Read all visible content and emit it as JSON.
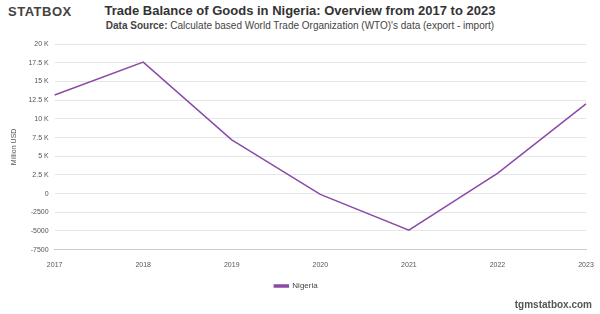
{
  "chart_data": {
    "type": "line",
    "title": "Trade Balance of Goods in Nigeria: Overview from 2017 to 2023",
    "subtitle": "Data Source: Calculate based World Trade Organization (WTO)'s data (export - import)",
    "y_label": "Million USD",
    "annotations": [
      "STATBOX",
      "tgmstatbox.com"
    ],
    "categories": [
      "2017",
      "2018",
      "2019",
      "2020",
      "2021",
      "2022",
      "2023"
    ],
    "series": [
      {
        "name": "Nigeria",
        "color": "#8b4aa8",
        "values": [
          13200,
          17600,
          7200,
          -100,
          -4900,
          2700,
          12000
        ]
      }
    ],
    "ylim": [
      -7500,
      20000
    ],
    "yticks": [
      -7500,
      -5000,
      -2500,
      0,
      {
        "value": 2500,
        "label": "2.5 K"
      },
      {
        "value": 5000,
        "label": "5 K"
      },
      {
        "value": 7500,
        "label": "7.5 K"
      },
      {
        "value": 10000,
        "label": "10 K"
      },
      {
        "value": 12500,
        "label": "12.5 K"
      },
      {
        "value": 15000,
        "label": "15 K"
      },
      {
        "value": 17500,
        "label": "17.5 K"
      },
      {
        "value": 20000,
        "label": "20 K"
      }
    ],
    "grid": true,
    "legend": "bottom"
  }
}
